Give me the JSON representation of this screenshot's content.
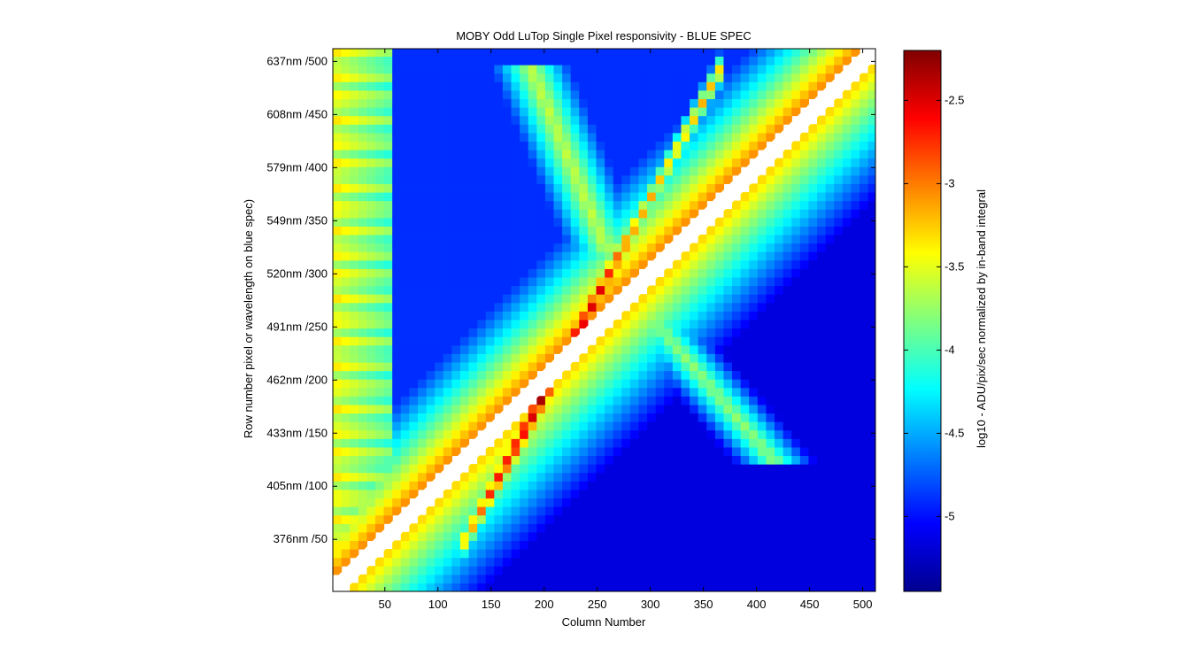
{
  "chart_data": {
    "type": "heatmap",
    "title": "MOBY Odd LuTop Single Pixel responsivity - BLUE SPEC",
    "xlabel": "Column Number",
    "ylabel": "Row number pixel or wavelength on blue spec)",
    "colorbar_label": "log10 - ADU/pix/sec normalized by in-band integral",
    "colormap": "jet",
    "xlim": [
      1,
      512
    ],
    "ylim": [
      1,
      512
    ],
    "clim": [
      -5.45,
      -2.2
    ],
    "x_ticks": [
      50,
      100,
      150,
      200,
      250,
      300,
      350,
      400,
      450,
      500
    ],
    "x_tick_labels": [
      "50",
      "100",
      "150",
      "200",
      "250",
      "300",
      "350",
      "400",
      "450",
      "500"
    ],
    "y_ticks": [
      50,
      100,
      150,
      200,
      250,
      300,
      350,
      400,
      450,
      500
    ],
    "y_tick_labels": [
      "376nm /50",
      "405nm /100",
      "433nm /150",
      "462nm /200",
      "491nm /250",
      "520nm /300",
      "549nm /350",
      "579nm /400",
      "608nm /450",
      "637nm /500"
    ],
    "colorbar_ticks": [
      -2.5,
      -3,
      -3.5,
      -4,
      -4.5,
      -5
    ],
    "colorbar_tick_labels": [
      "-2.5",
      "-3",
      "-3.5",
      "-4",
      "-4.5",
      "-5"
    ],
    "features": [
      {
        "kind": "saturated-diagonal-band",
        "from": [
          1,
          1
        ],
        "to": [
          512,
          512
        ],
        "note": "white gap with dotted pixels"
      },
      {
        "kind": "peak-ridge",
        "from": [
          120,
          40
        ],
        "to": [
          370,
          500
        ],
        "value": -2.25
      },
      {
        "kind": "bright-band-above-diagonal",
        "value": -3.0
      },
      {
        "kind": "bright-band-below-diagonal",
        "value": -3.3
      },
      {
        "kind": "secondary-ridge",
        "from": [
          185,
          500
        ],
        "to": [
          260,
          320
        ],
        "value": -3.6
      },
      {
        "kind": "secondary-ridge",
        "from": [
          420,
          120
        ],
        "to": [
          300,
          260
        ],
        "value": -3.7
      },
      {
        "kind": "low-region-upper-left",
        "value": -4.9
      },
      {
        "kind": "low-region-lower-right",
        "value": -5.1
      }
    ]
  }
}
